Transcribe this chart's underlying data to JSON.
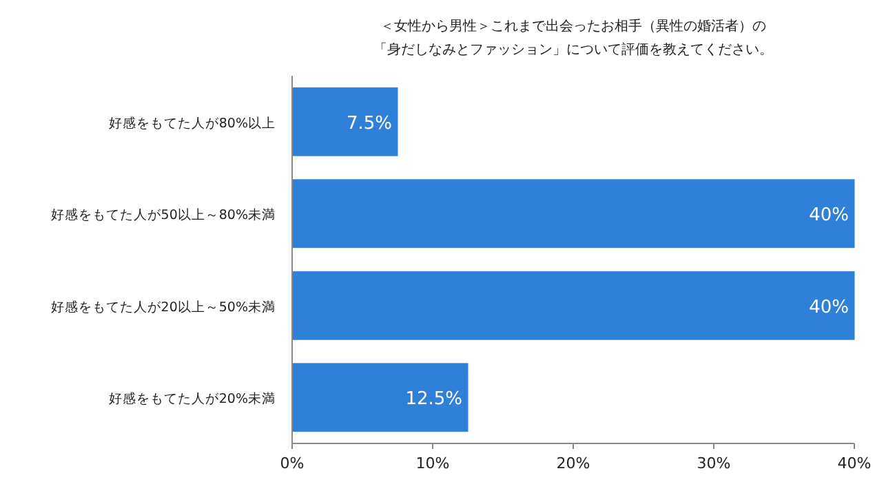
{
  "chart_data": {
    "type": "bar",
    "orientation": "horizontal",
    "title": "＜女性から男性＞これまで出会ったお相手（異性の婚活者）の",
    "subtitle": "「身だしなみとファッション」について評価を教えてください。",
    "categories": [
      "好感をもてた人が80%以上",
      "好感をもてた人が50以上～80%未満",
      "好感をもてた人が20以上～50%未満",
      "好感をもてた人が20%未満"
    ],
    "values": [
      7.5,
      40,
      40,
      12.5
    ],
    "value_labels": [
      "7.5%",
      "40%",
      "40%",
      "12.5%"
    ],
    "color": "#2f80d8",
    "xlim": [
      0,
      40
    ],
    "xticks": [
      {
        "value": 0,
        "label": "0%"
      },
      {
        "value": 10,
        "label": "10%"
      },
      {
        "value": 20,
        "label": "20%"
      },
      {
        "value": 30,
        "label": "30%"
      },
      {
        "value": 40,
        "label": "40%"
      }
    ]
  }
}
